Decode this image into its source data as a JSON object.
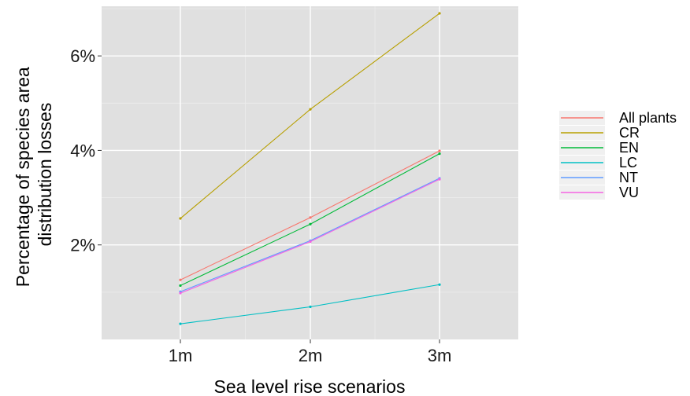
{
  "chart_data": {
    "type": "line",
    "title": "",
    "xlabel": "Sea level rise scenarios",
    "ylabel_lines": [
      "Percentage of species area",
      "distribution losses"
    ],
    "categories": [
      "1m",
      "2m",
      "3m"
    ],
    "ylim": [
      0,
      7.05
    ],
    "yticks": [
      {
        "value": 2,
        "label": "2%"
      },
      {
        "value": 4,
        "label": "4%"
      },
      {
        "value": 6,
        "label": "6%"
      }
    ],
    "grid": true,
    "legend_position": "right",
    "series": [
      {
        "name": "All plants",
        "color": "#F8766D",
        "values": [
          1.26,
          2.58,
          3.99
        ]
      },
      {
        "name": "CR",
        "color": "#B79F00",
        "values": [
          2.56,
          4.87,
          6.9
        ]
      },
      {
        "name": "EN",
        "color": "#00BA38",
        "values": [
          1.14,
          2.44,
          3.93
        ]
      },
      {
        "name": "LC",
        "color": "#00BFC4",
        "values": [
          0.33,
          0.69,
          1.16
        ]
      },
      {
        "name": "NT",
        "color": "#619CFF",
        "values": [
          1.01,
          2.09,
          3.41
        ]
      },
      {
        "name": "VU",
        "color": "#F564E3",
        "values": [
          0.98,
          2.07,
          3.39
        ]
      }
    ]
  }
}
